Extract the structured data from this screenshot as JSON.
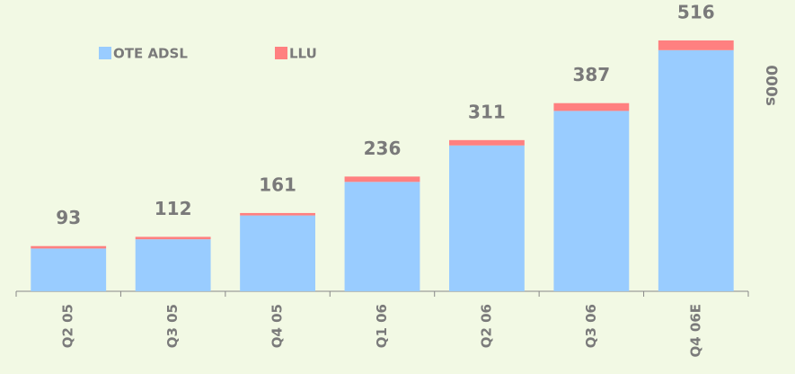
{
  "chart_data": {
    "type": "stacked_bar",
    "y_label": "000s",
    "categories": [
      "Q2 05",
      "Q3 05",
      "Q4 05",
      "Q1 06",
      "Q2 06",
      "Q3 06",
      "Q4 06E"
    ],
    "series": [
      {
        "name": "OTE ADSL",
        "color": "#99ccff",
        "values": [
          88,
          107,
          156,
          225,
          300,
          371,
          496
        ]
      },
      {
        "name": "LLU",
        "color": "#ff8080",
        "values": [
          5,
          5,
          5,
          11,
          11,
          16,
          20
        ]
      }
    ],
    "totals": [
      93,
      112,
      161,
      236,
      311,
      387,
      516
    ],
    "ylim": [
      0,
      540
    ]
  }
}
